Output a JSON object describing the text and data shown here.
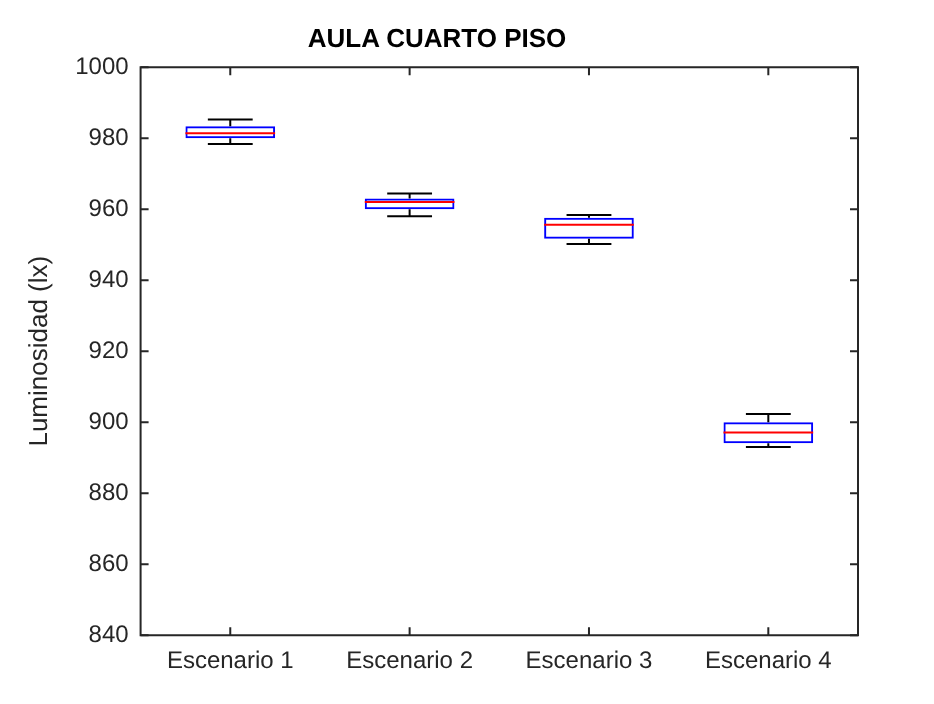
{
  "chart_data": {
    "type": "box",
    "title": "AULA CUARTO PISO",
    "ylabel": "Luminosidad (lx)",
    "categories": [
      "Escenario 1",
      "Escenario 2",
      "Escenario 3",
      "Escenario 4"
    ],
    "series": [
      {
        "color": "#0000ff",
        "boxes": [
          {
            "low": 978.4,
            "q1": 980,
            "median": 981.4,
            "q3": 983.4,
            "high": 985.3
          },
          {
            "low": 958,
            "q1": 960,
            "median": 962,
            "q3": 963,
            "high": 964.4
          },
          {
            "low": 950.2,
            "q1": 951.7,
            "median": 955.6,
            "q3": 957.6,
            "high": 958.4
          },
          {
            "low": 893,
            "q1": 894.1,
            "median": 897.1,
            "q3": 900,
            "high": 902.3
          }
        ]
      }
    ],
    "ylim": [
      840,
      1000
    ],
    "yticks": [
      840,
      860,
      880,
      900,
      920,
      940,
      960,
      980,
      1000
    ],
    "grid": false,
    "legend": false
  }
}
